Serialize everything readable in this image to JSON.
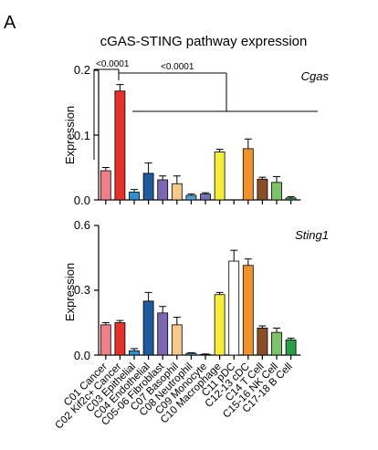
{
  "figure": {
    "panel_label": "A",
    "title": "cGAS-STING pathway expression",
    "ylabel": "Expression"
  },
  "colors": [
    "#f07f86",
    "#e5312c",
    "#2d8fd0",
    "#1d5a9e",
    "#7c66b4",
    "#f5c98a",
    "#4ca3d8",
    "#7570b6",
    "#f6ee3a",
    "#ffffff",
    "#f2922d",
    "#8a4f26",
    "#7cc36b",
    "#27a045",
    "#1d8a4f"
  ],
  "chart_data": [
    {
      "type": "bar",
      "gene": "Cgas",
      "categories": [
        "C01 Cancer",
        "C02 Kif2c+ Cancer",
        "C03 Epithelial",
        "C04 Endothelial",
        "C05-06 Fibroblast",
        "C07 Basophil",
        "C08 Neutrophil",
        "C09 Monocyte",
        "C10 Macrophage",
        "C11 pDC",
        "C12-13 cDC",
        "C14 T Cell",
        "C15-16 NK Cell",
        "C17-18 B Cell"
      ],
      "values": [
        0.045,
        0.168,
        0.012,
        0.041,
        0.031,
        0.025,
        0.007,
        0.009,
        0.074,
        0.0,
        0.079,
        0.032,
        0.027,
        0.003
      ],
      "errors": [
        0.005,
        0.01,
        0.004,
        0.016,
        0.006,
        0.012,
        0.002,
        0.002,
        0.004,
        0.0,
        0.015,
        0.003,
        0.009,
        0.002
      ],
      "yticks": [
        0.0,
        0.1,
        0.2
      ],
      "ytick_labels": [
        "0.0",
        "0.1",
        "0.2"
      ],
      "ylim": [
        0,
        0.2
      ],
      "ylabel": "Expression",
      "annotations": [
        "<0.0001",
        "<0.0001"
      ]
    },
    {
      "type": "bar",
      "gene": "Sting1",
      "categories": [
        "C01 Cancer",
        "C02 Kif2c+ Cancer",
        "C03 Epithelial",
        "C04 Endothelial",
        "C05-06 Fibroblast",
        "C07 Basophil",
        "C08 Neutrophil",
        "C09 Monocyte",
        "C10 Macrophage",
        "C11 pDC",
        "C12-13 cDC",
        "C14 T Cell",
        "C15-16 NK Cell",
        "C17-18 B Cell"
      ],
      "values": [
        0.14,
        0.15,
        0.02,
        0.25,
        0.195,
        0.14,
        0.008,
        0.003,
        0.28,
        0.435,
        0.415,
        0.125,
        0.105,
        0.07
      ],
      "errors": [
        0.01,
        0.01,
        0.01,
        0.04,
        0.03,
        0.035,
        0.003,
        0.002,
        0.01,
        0.05,
        0.03,
        0.01,
        0.02,
        0.008
      ],
      "yticks": [
        0.0,
        0.3,
        0.6
      ],
      "ytick_labels": [
        "0.0",
        "0.3",
        "0.6"
      ],
      "ylim": [
        0,
        0.6
      ],
      "ylabel": "Expression"
    }
  ]
}
